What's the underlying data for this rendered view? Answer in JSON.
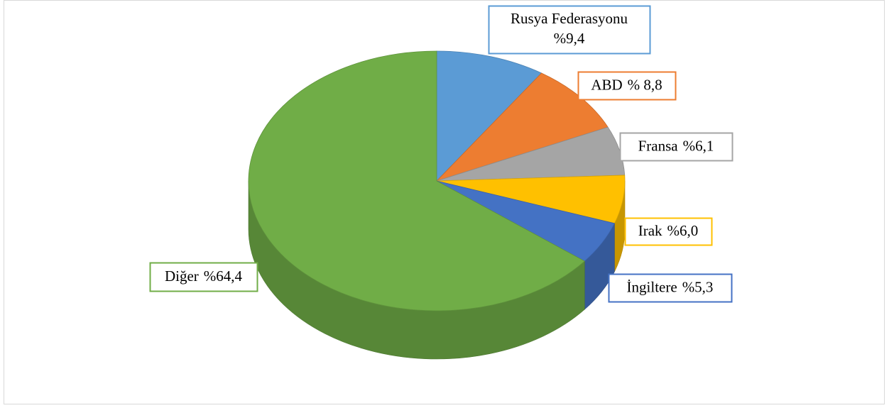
{
  "chart_data": {
    "type": "pie3d",
    "categories": [
      "Rusya Federasyonu",
      "ABD",
      "Fransa",
      "Irak",
      "İngiltere",
      "Diğer"
    ],
    "values": [
      9.4,
      8.8,
      6.1,
      6.0,
      5.3,
      64.4
    ],
    "value_labels": [
      "%9,4",
      "% 8,8",
      "%6,1",
      "%6,0",
      "%5,3",
      "%64,4"
    ],
    "colors": [
      "#5b9bd5",
      "#ed7d31",
      "#a5a5a5",
      "#ffc000",
      "#4472c4",
      "#70ad47"
    ]
  }
}
